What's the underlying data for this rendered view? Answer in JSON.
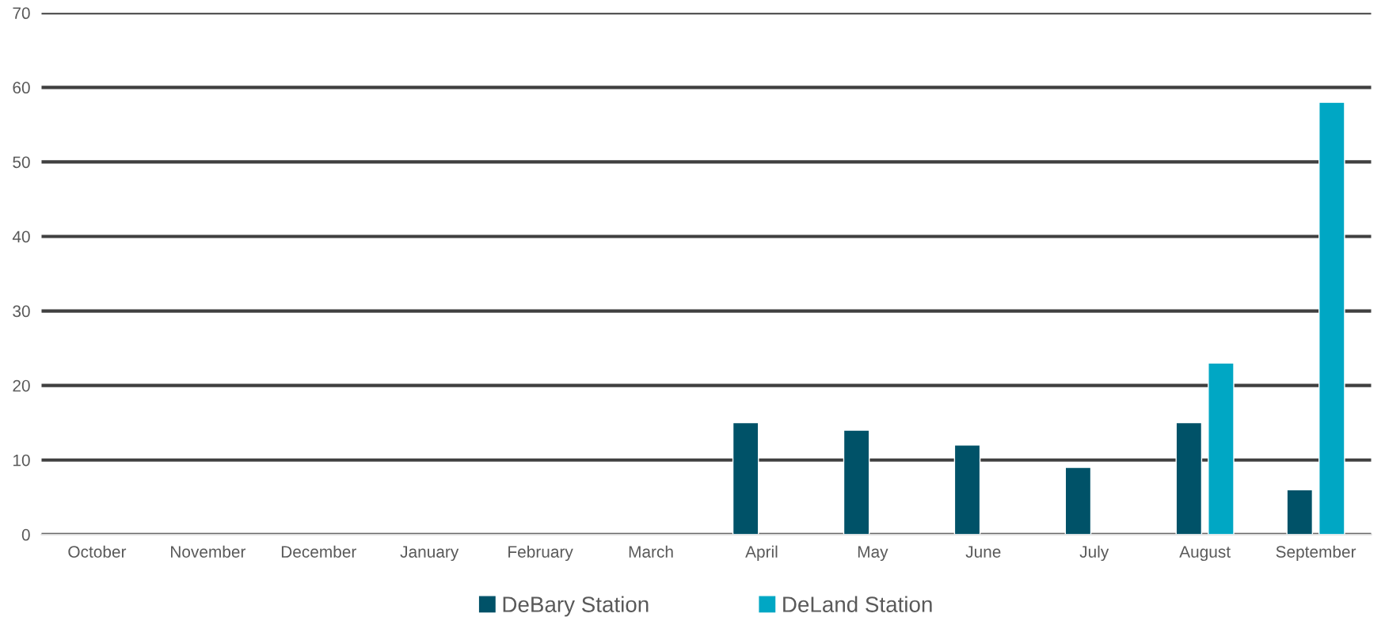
{
  "chart_data": {
    "type": "bar",
    "categories": [
      "October",
      "November",
      "December",
      "January",
      "February",
      "March",
      "April",
      "May",
      "June",
      "July",
      "August",
      "September"
    ],
    "series": [
      {
        "name": "DeBary Station",
        "color": "#005268",
        "values": [
          null,
          null,
          null,
          null,
          null,
          null,
          15,
          14,
          12,
          9,
          15,
          6
        ]
      },
      {
        "name": "DeLand Station",
        "color": "#00a7c4",
        "values": [
          null,
          null,
          null,
          null,
          null,
          null,
          null,
          null,
          null,
          null,
          23,
          58
        ]
      }
    ],
    "ylim": [
      0,
      70
    ],
    "yticks": [
      0,
      10,
      20,
      30,
      40,
      50,
      60,
      70
    ],
    "grid": "y",
    "legend": "bottom"
  }
}
